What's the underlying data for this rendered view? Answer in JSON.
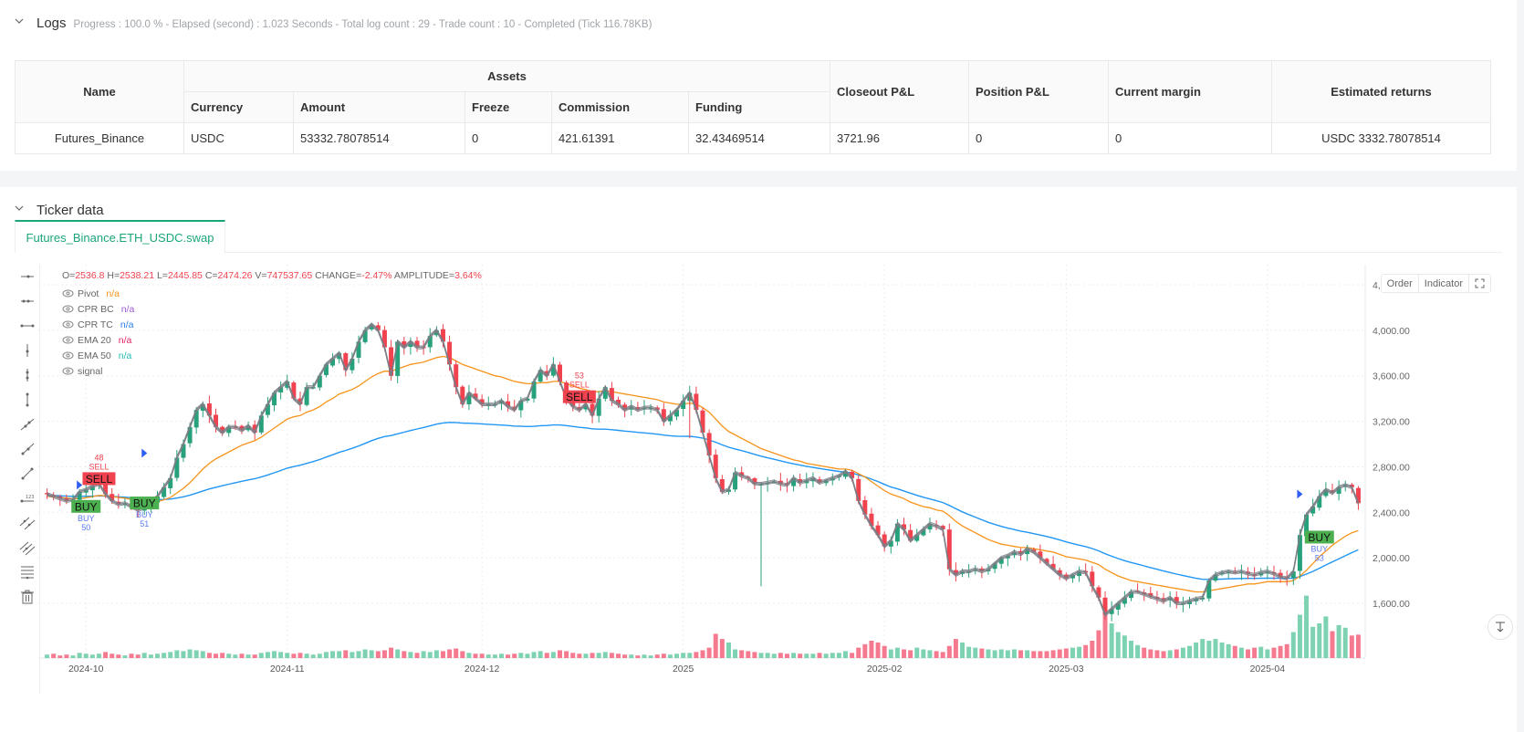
{
  "logs": {
    "title": "Logs",
    "status": "Progress : 100.0 % - Elapsed (second) : 1.023  Seconds - Total log count : 29 - Trade count : 10 - Completed (Tick 116.78KB)"
  },
  "assets_table": {
    "headers": {
      "name": "Name",
      "assets_group": "Assets",
      "currency": "Currency",
      "amount": "Amount",
      "freeze": "Freeze",
      "commission": "Commission",
      "funding": "Funding",
      "closeout_pl": "Closeout P&L",
      "position_pl": "Position P&L",
      "current_margin": "Current margin",
      "estimated_returns": "Estimated returns"
    },
    "rows": [
      {
        "name": "Futures_Binance",
        "currency": "USDC",
        "amount": "53332.78078514",
        "freeze": "0",
        "commission": "421.61391",
        "funding": "32.43469514",
        "closeout_pl": "3721.96",
        "position_pl": "0",
        "current_margin": "0",
        "estimated_returns": "USDC 3332.78078514"
      }
    ]
  },
  "ticker": {
    "title": "Ticker data",
    "tabs": [
      {
        "label": "Futures_Binance.ETH_USDC.swap",
        "active": true
      }
    ]
  },
  "chart_header": {
    "ohlc": [
      {
        "k": "O=",
        "v": "2536.8"
      },
      {
        "k": " H=",
        "v": "2538.21"
      },
      {
        "k": " L=",
        "v": "2445.85"
      },
      {
        "k": " C=",
        "v": "2474.26"
      },
      {
        "k": " V=",
        "v": "747537.65"
      },
      {
        "k": " CHANGE=",
        "v": "-2.47%"
      },
      {
        "k": " AMPLITUDE=",
        "v": "3.64%"
      }
    ],
    "legend": [
      {
        "name": "Pivot",
        "value": "n/a",
        "color": "#f7931a"
      },
      {
        "name": "CPR BC",
        "value": "n/a",
        "color": "#9b59d0"
      },
      {
        "name": "CPR TC",
        "value": "n/a",
        "color": "#2f80ed"
      },
      {
        "name": "EMA 20",
        "value": "n/a",
        "color": "#e91e63"
      },
      {
        "name": "EMA 50",
        "value": "n/a",
        "color": "#1fbfb8"
      },
      {
        "name": "signal",
        "value": "",
        "color": "#666666"
      }
    ],
    "buttons": {
      "order": "Order",
      "indicator": "Indicator"
    }
  },
  "colors": {
    "up": "#26a17b",
    "down": "#f0424f",
    "ema_fast": "#f7931a",
    "ema_slow": "#2196f3",
    "signal_line": "#7a7d85",
    "buy_bg": "#4caf50",
    "sell_bg": "#f0424f",
    "accent": "#1aa57a"
  },
  "chart_data": {
    "type": "candlestick",
    "title": "Futures_Binance.ETH_USDC.swap",
    "y_ticks": [
      "4,400.00",
      "4,000.00",
      "3,600.00",
      "3,200.00",
      "2,800.00",
      "2,400.00",
      "2,000.00",
      "1,600.00"
    ],
    "y_tick_values": [
      4400,
      4000,
      3600,
      3200,
      2800,
      2400,
      2000,
      1600
    ],
    "x_ticks": [
      "2024-10",
      "2024-11",
      "2024-12",
      "2025",
      "2025-02",
      "2025-03",
      "2025-04"
    ],
    "x_tick_index": [
      6,
      37,
      67,
      98,
      129,
      157,
      188
    ],
    "ylim": [
      1200,
      4550
    ],
    "grid": true,
    "closes": [
      2560,
      2540,
      2520,
      2500,
      2510,
      2580,
      2600,
      2630,
      2650,
      2560,
      2500,
      2470,
      2480,
      2450,
      2420,
      2440,
      2480,
      2540,
      2620,
      2700,
      2880,
      3000,
      3150,
      3300,
      3350,
      3250,
      3150,
      3100,
      3150,
      3150,
      3120,
      3160,
      3100,
      3250,
      3350,
      3450,
      3500,
      3550,
      3400,
      3350,
      3500,
      3500,
      3600,
      3700,
      3750,
      3800,
      3650,
      3750,
      3900,
      4000,
      4050,
      4000,
      3850,
      3600,
      3900,
      3850,
      3900,
      3850,
      3850,
      3950,
      4000,
      3900,
      3700,
      3500,
      3350,
      3450,
      3400,
      3350,
      3350,
      3350,
      3380,
      3330,
      3300,
      3380,
      3400,
      3550,
      3650,
      3600,
      3700,
      3550,
      3400,
      3330,
      3300,
      3350,
      3250,
      3400,
      3500,
      3380,
      3350,
      3300,
      3330,
      3300,
      3320,
      3320,
      3300,
      3200,
      3250,
      3300,
      3380,
      3450,
      3300,
      3100,
      2900,
      2700,
      2580,
      2600,
      2750,
      2720,
      2700,
      2650,
      2650,
      2660,
      2670,
      2650,
      2640,
      2700,
      2660,
      2680,
      2700,
      2660,
      2680,
      2700,
      2720,
      2760,
      2700,
      2500,
      2380,
      2280,
      2200,
      2100,
      2150,
      2300,
      2250,
      2150,
      2200,
      2250,
      2300,
      2280,
      2250,
      1900,
      1850,
      1880,
      1880,
      1900,
      1880,
      1900,
      1950,
      2000,
      2020,
      2050,
      2030,
      2080,
      2050,
      2000,
      1950,
      1900,
      1850,
      1820,
      1850,
      1880,
      1870,
      1750,
      1650,
      1500,
      1550,
      1600,
      1650,
      1700,
      1700,
      1680,
      1660,
      1640,
      1620,
      1650,
      1600,
      1600,
      1620,
      1640,
      1650,
      1800,
      1850,
      1870,
      1880,
      1870,
      1880,
      1860,
      1850,
      1870,
      1880,
      1860,
      1830,
      1820,
      1880,
      2200,
      2380,
      2450,
      2540,
      2600,
      2570,
      2620,
      2640,
      2620,
      2480
    ],
    "ema20": [
      2540,
      2536,
      2530,
      2525,
      2520,
      2520,
      2528,
      2538,
      2548,
      2546,
      2540,
      2530,
      2525,
      2512,
      2500,
      2490,
      2488,
      2494,
      2510,
      2530,
      2570,
      2610,
      2660,
      2720,
      2780,
      2830,
      2870,
      2900,
      2930,
      2960,
      2990,
      3010,
      3030,
      3060,
      3100,
      3140,
      3180,
      3220,
      3240,
      3250,
      3280,
      3300,
      3330,
      3370,
      3400,
      3440,
      3460,
      3480,
      3510,
      3550,
      3590,
      3620,
      3640,
      3640,
      3660,
      3680,
      3700,
      3710,
      3720,
      3740,
      3760,
      3770,
      3760,
      3730,
      3700,
      3680,
      3660,
      3640,
      3620,
      3600,
      3590,
      3570,
      3550,
      3540,
      3530,
      3530,
      3540,
      3540,
      3550,
      3550,
      3530,
      3510,
      3490,
      3480,
      3460,
      3460,
      3470,
      3460,
      3450,
      3440,
      3430,
      3420,
      3410,
      3400,
      3390,
      3370,
      3360,
      3350,
      3350,
      3360,
      3350,
      3320,
      3280,
      3220,
      3160,
      3110,
      3080,
      3050,
      3020,
      2990,
      2960,
      2940,
      2920,
      2900,
      2880,
      2860,
      2850,
      2830,
      2820,
      2810,
      2800,
      2790,
      2780,
      2780,
      2770,
      2740,
      2710,
      2670,
      2630,
      2590,
      2560,
      2540,
      2520,
      2490,
      2470,
      2450,
      2440,
      2420,
      2410,
      2370,
      2320,
      2280,
      2250,
      2220,
      2190,
      2160,
      2140,
      2120,
      2110,
      2100,
      2090,
      2090,
      2080,
      2070,
      2060,
      2050,
      2030,
      2010,
      2000,
      1990,
      1980,
      1960,
      1940,
      1900,
      1870,
      1840,
      1820,
      1800,
      1790,
      1780,
      1770,
      1760,
      1750,
      1740,
      1730,
      1720,
      1710,
      1700,
      1700,
      1710,
      1720,
      1730,
      1740,
      1750,
      1760,
      1770,
      1770,
      1780,
      1790,
      1790,
      1790,
      1790,
      1800,
      1840,
      1890,
      1950,
      2010,
      2060,
      2110,
      2150,
      2190,
      2220,
      2240
    ],
    "ema50": [
      2550,
      2548,
      2545,
      2542,
      2540,
      2540,
      2541,
      2542,
      2544,
      2543,
      2540,
      2536,
      2533,
      2528,
      2522,
      2517,
      2513,
      2512,
      2513,
      2516,
      2525,
      2536,
      2550,
      2568,
      2588,
      2605,
      2620,
      2633,
      2647,
      2660,
      2673,
      2685,
      2695,
      2710,
      2728,
      2747,
      2767,
      2788,
      2802,
      2814,
      2830,
      2846,
      2864,
      2885,
      2905,
      2927,
      2944,
      2962,
      2983,
      3006,
      3030,
      3050,
      3066,
      3075,
      3090,
      3104,
      3119,
      3132,
      3145,
      3160,
      3175,
      3185,
      3190,
      3189,
      3184,
      3183,
      3180,
      3177,
      3173,
      3170,
      3167,
      3163,
      3158,
      3156,
      3154,
      3156,
      3161,
      3163,
      3168,
      3168,
      3162,
      3155,
      3147,
      3142,
      3134,
      3131,
      3131,
      3126,
      3120,
      3114,
      3109,
      3103,
      3098,
      3093,
      3087,
      3079,
      3073,
      3069,
      3067,
      3068,
      3062,
      3052,
      3036,
      3016,
      2993,
      2972,
      2957,
      2942,
      2926,
      2909,
      2893,
      2879,
      2866,
      2852,
      2838,
      2826,
      2815,
      2804,
      2795,
      2785,
      2776,
      2767,
      2759,
      2753,
      2745,
      2729,
      2712,
      2692,
      2670,
      2645,
      2622,
      2606,
      2588,
      2568,
      2549,
      2532,
      2517,
      2502,
      2486,
      2460,
      2431,
      2404,
      2380,
      2357,
      2334,
      2312,
      2293,
      2276,
      2261,
      2248,
      2235,
      2224,
      2212,
      2200,
      2187,
      2173,
      2157,
      2140,
      2125,
      2111,
      2098,
      2081,
      2061,
      2036,
      2014,
      1993,
      1975,
      1959,
      1944,
      1929,
      1914,
      1899,
      1884,
      1870,
      1857,
      1844,
      1832,
      1820,
      1811,
      1810,
      1811,
      1813,
      1815,
      1817,
      1818,
      1819,
      1819,
      1820,
      1821,
      1821,
      1820,
      1819,
      1820,
      1835,
      1857,
      1881,
      1908,
      1937,
      1964,
      1991,
      2018,
      2045,
      2070
    ],
    "volumes": [
      4,
      5,
      3,
      4,
      3,
      6,
      5,
      4,
      5,
      7,
      5,
      4,
      3,
      5,
      4,
      6,
      4,
      5,
      6,
      7,
      9,
      8,
      10,
      9,
      8,
      6,
      5,
      6,
      5,
      4,
      5,
      4,
      4,
      6,
      7,
      8,
      7,
      6,
      5,
      6,
      5,
      4,
      5,
      7,
      8,
      8,
      9,
      7,
      8,
      10,
      9,
      8,
      9,
      12,
      10,
      8,
      7,
      6,
      8,
      7,
      9,
      8,
      10,
      11,
      8,
      6,
      5,
      5,
      4,
      4,
      5,
      4,
      5,
      6,
      5,
      7,
      8,
      6,
      7,
      9,
      8,
      6,
      5,
      5,
      6,
      6,
      7,
      6,
      5,
      4,
      4,
      3,
      4,
      3,
      4,
      5,
      4,
      5,
      6,
      6,
      7,
      9,
      12,
      28,
      22,
      18,
      10,
      9,
      8,
      7,
      6,
      6,
      5,
      6,
      5,
      6,
      5,
      5,
      5,
      6,
      5,
      6,
      6,
      8,
      6,
      12,
      16,
      20,
      18,
      14,
      10,
      12,
      10,
      9,
      12,
      10,
      9,
      8,
      7,
      14,
      22,
      18,
      13,
      12,
      11,
      10,
      9,
      10,
      9,
      10,
      9,
      9,
      8,
      8,
      8,
      9,
      10,
      11,
      12,
      13,
      15,
      20,
      32,
      55,
      40,
      30,
      26,
      20,
      15,
      12,
      10,
      9,
      8,
      9,
      10,
      12,
      14,
      18,
      22,
      20,
      22,
      18,
      16,
      14,
      12,
      10,
      12,
      13,
      10,
      12,
      14,
      16,
      30,
      50,
      72,
      36,
      40,
      48,
      31,
      38,
      35,
      26,
      27
    ],
    "signals": [
      {
        "type": "SELL",
        "index": 8,
        "price": 2720,
        "label": "SELL",
        "sub": "SELL",
        "num": "48"
      },
      {
        "type": "BUY",
        "index": 6,
        "price": 2460,
        "label": "BUY",
        "sub": "BUY",
        "num": "50"
      },
      {
        "type": "BUY",
        "index": 15,
        "price": 2490,
        "label": "BUY",
        "sub": "BUY",
        "num": "51"
      },
      {
        "type": "SELL",
        "index": 82,
        "price": 3440,
        "label": "SELL",
        "sub": "SELL",
        "num": "53"
      },
      {
        "type": "BUY",
        "index": 196,
        "price": 2190,
        "label": "BUY",
        "sub": "BUY",
        "num": "53"
      }
    ],
    "markers": [
      {
        "index": 5,
        "price": 2640
      },
      {
        "index": 15,
        "price": 2920
      },
      {
        "index": 193,
        "price": 2560
      }
    ]
  }
}
